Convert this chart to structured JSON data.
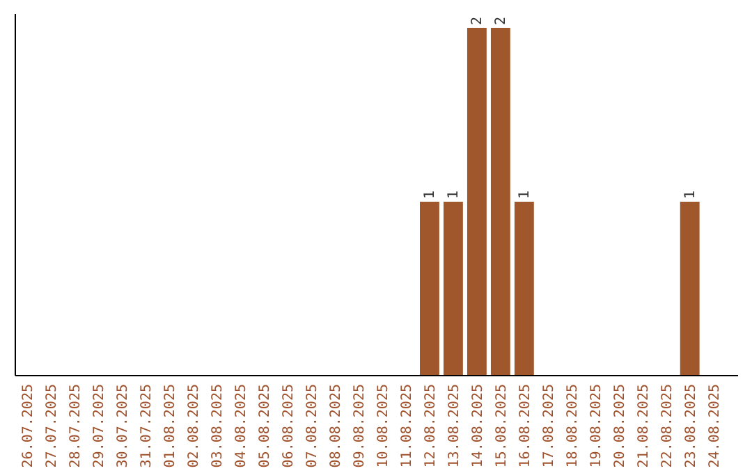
{
  "chart_data": {
    "type": "bar",
    "categories": [
      "26.07.2025",
      "27.07.2025",
      "28.07.2025",
      "29.07.2025",
      "30.07.2025",
      "31.07.2025",
      "01.08.2025",
      "02.08.2025",
      "03.08.2025",
      "04.08.2025",
      "05.08.2025",
      "06.08.2025",
      "07.08.2025",
      "08.08.2025",
      "09.08.2025",
      "10.08.2025",
      "11.08.2025",
      "12.08.2025",
      "13.08.2025",
      "14.08.2025",
      "15.08.2025",
      "16.08.2025",
      "17.08.2025",
      "18.08.2025",
      "19.08.2025",
      "20.08.2025",
      "21.08.2025",
      "22.08.2025",
      "23.08.2025",
      "24.08.2025"
    ],
    "values": [
      null,
      null,
      null,
      null,
      null,
      null,
      null,
      null,
      null,
      null,
      null,
      null,
      null,
      null,
      null,
      null,
      null,
      1,
      1,
      2,
      2,
      1,
      null,
      null,
      null,
      null,
      null,
      null,
      1,
      null
    ],
    "value_labels": [
      null,
      null,
      null,
      null,
      null,
      null,
      null,
      null,
      null,
      null,
      null,
      null,
      null,
      null,
      null,
      null,
      null,
      "1",
      "1",
      "2",
      "2",
      "1",
      null,
      null,
      null,
      null,
      null,
      null,
      "1",
      null
    ],
    "color": "#a0572b",
    "grid": false,
    "tick_labels": "x"
  }
}
